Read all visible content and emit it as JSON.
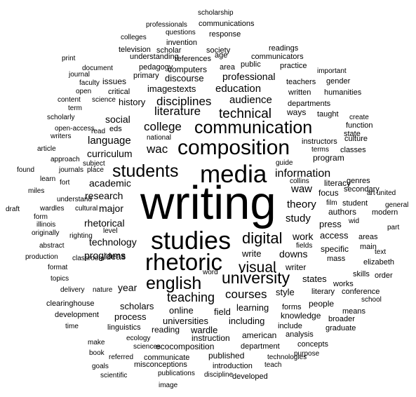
{
  "word_cloud": {
    "words": [
      {
        "text": "writing",
        "weight": 1.0
      },
      {
        "text": "studies",
        "weight": 0.55
      },
      {
        "text": "media",
        "weight": 0.55
      },
      {
        "text": "rhetoric",
        "weight": 0.52
      },
      {
        "text": "composition",
        "weight": 0.48
      },
      {
        "text": "english",
        "weight": 0.42
      },
      {
        "text": "students",
        "weight": 0.42
      },
      {
        "text": "communication",
        "weight": 0.38
      },
      {
        "text": "digital",
        "weight": 0.35
      },
      {
        "text": "university",
        "weight": 0.35
      },
      {
        "text": "technical",
        "weight": 0.3
      },
      {
        "text": "visual",
        "weight": 0.3
      },
      {
        "text": "teaching",
        "weight": 0.26
      },
      {
        "text": "courses",
        "weight": 0.26
      },
      {
        "text": "college",
        "weight": 0.25
      },
      {
        "text": "wac",
        "weight": 0.25
      },
      {
        "text": "disciplines",
        "weight": 0.24
      },
      {
        "text": "literature",
        "weight": 0.24
      },
      {
        "text": "information",
        "weight": 0.22
      },
      {
        "text": "research",
        "weight": 0.22
      },
      {
        "text": "theory",
        "weight": 0.21
      },
      {
        "text": "study",
        "weight": 0.21
      },
      {
        "text": "technology",
        "weight": 0.21
      },
      {
        "text": "programs",
        "weight": 0.2
      },
      {
        "text": "audience",
        "weight": 0.2
      },
      {
        "text": "language",
        "weight": 0.2
      },
      {
        "text": "waw",
        "weight": 0.2
      },
      {
        "text": "education",
        "weight": 0.19
      },
      {
        "text": "curriculum",
        "weight": 0.19
      },
      {
        "text": "academic",
        "weight": 0.19
      },
      {
        "text": "rhetorical",
        "weight": 0.19
      },
      {
        "text": "universities",
        "weight": 0.19
      },
      {
        "text": "professional",
        "weight": 0.18
      },
      {
        "text": "imagestexts",
        "weight": 0.18
      },
      {
        "text": "online",
        "weight": 0.18
      },
      {
        "text": "work",
        "weight": 0.18
      },
      {
        "text": "downs",
        "weight": 0.18
      },
      {
        "text": "scholars",
        "weight": 0.17
      },
      {
        "text": "major",
        "weight": 0.17
      },
      {
        "text": "ideas",
        "weight": 0.17
      },
      {
        "text": "history",
        "weight": 0.16
      },
      {
        "text": "social",
        "weight": 0.16
      },
      {
        "text": "learning",
        "weight": 0.16
      },
      {
        "text": "process",
        "weight": 0.16
      },
      {
        "text": "wardle",
        "weight": 0.16
      },
      {
        "text": "field",
        "weight": 0.16
      },
      {
        "text": "including",
        "weight": 0.16
      },
      {
        "text": "style",
        "weight": 0.16
      },
      {
        "text": "year",
        "weight": 0.15
      },
      {
        "text": "write",
        "weight": 0.15
      },
      {
        "text": "writer",
        "weight": 0.15
      },
      {
        "text": "press",
        "weight": 0.15
      },
      {
        "text": "access",
        "weight": 0.14
      },
      {
        "text": "states",
        "weight": 0.14
      },
      {
        "text": "reading",
        "weight": 0.14
      },
      {
        "text": "american",
        "weight": 0.14
      },
      {
        "text": "specific",
        "weight": 0.13
      },
      {
        "text": "instruction",
        "weight": 0.13
      },
      {
        "text": "ecocomposition",
        "weight": 0.13
      },
      {
        "text": "knowledge",
        "weight": 0.13
      },
      {
        "text": "forms",
        "weight": 0.13
      },
      {
        "text": "people",
        "weight": 0.13
      },
      {
        "text": "literacy",
        "weight": 0.13
      },
      {
        "text": "program",
        "weight": 0.13
      },
      {
        "text": "focus",
        "weight": 0.13
      },
      {
        "text": "authors",
        "weight": 0.13
      },
      {
        "text": "ways",
        "weight": 0.13
      },
      {
        "text": "discourse",
        "weight": 0.13
      },
      {
        "text": "computers",
        "weight": 0.12
      },
      {
        "text": "department",
        "weight": 0.12
      },
      {
        "text": "published",
        "weight": 0.12
      },
      {
        "text": "communicate",
        "weight": 0.12
      },
      {
        "text": "conference",
        "weight": 0.12
      },
      {
        "text": "developed",
        "weight": 0.12
      },
      {
        "text": "introduction",
        "weight": 0.12
      },
      {
        "text": "misconceptions",
        "weight": 0.12
      },
      {
        "text": "linguistics",
        "weight": 0.12
      },
      {
        "text": "development",
        "weight": 0.12
      },
      {
        "text": "clearinghouse",
        "weight": 0.12
      },
      {
        "text": "graduate",
        "weight": 0.12
      },
      {
        "text": "means",
        "weight": 0.12
      },
      {
        "text": "broader",
        "weight": 0.12
      },
      {
        "text": "include",
        "weight": 0.12
      },
      {
        "text": "analysis",
        "weight": 0.12
      },
      {
        "text": "concepts",
        "weight": 0.12
      },
      {
        "text": "instructors",
        "weight": 0.12
      },
      {
        "text": "culture",
        "weight": 0.12
      },
      {
        "text": "classes",
        "weight": 0.12
      },
      {
        "text": "secondary",
        "weight": 0.12
      },
      {
        "text": "genres",
        "weight": 0.12
      },
      {
        "text": "student",
        "weight": 0.12
      },
      {
        "text": "modern",
        "weight": 0.12
      },
      {
        "text": "areas",
        "weight": 0.12
      },
      {
        "text": "main",
        "weight": 0.12
      },
      {
        "text": "elizabeth",
        "weight": 0.12
      },
      {
        "text": "mass",
        "weight": 0.12
      },
      {
        "text": "skills",
        "weight": 0.12
      },
      {
        "text": "order",
        "weight": 0.12
      },
      {
        "text": "literary",
        "weight": 0.12
      },
      {
        "text": "works",
        "weight": 0.12
      },
      {
        "text": "school",
        "weight": 0.1
      },
      {
        "text": "teachers",
        "weight": 0.12
      },
      {
        "text": "written",
        "weight": 0.12
      },
      {
        "text": "departments",
        "weight": 0.12
      },
      {
        "text": "humanities",
        "weight": 0.12
      },
      {
        "text": "taught",
        "weight": 0.12
      },
      {
        "text": "create",
        "weight": 0.1
      },
      {
        "text": "function",
        "weight": 0.11
      },
      {
        "text": "state",
        "weight": 0.11
      },
      {
        "text": "gender",
        "weight": 0.11
      },
      {
        "text": "important",
        "weight": 0.1
      },
      {
        "text": "practice",
        "weight": 0.11
      },
      {
        "text": "readings",
        "weight": 0.11
      },
      {
        "text": "communicators",
        "weight": 0.11
      },
      {
        "text": "public",
        "weight": 0.11
      },
      {
        "text": "area",
        "weight": 0.11
      },
      {
        "text": "age",
        "weight": 0.1
      },
      {
        "text": "society",
        "weight": 0.11
      },
      {
        "text": "response",
        "weight": 0.11
      },
      {
        "text": "communications",
        "weight": 0.11
      },
      {
        "text": "scholarship",
        "weight": 0.11
      },
      {
        "text": "professionals",
        "weight": 0.1
      },
      {
        "text": "questions",
        "weight": 0.1
      },
      {
        "text": "colleges",
        "weight": 0.1
      },
      {
        "text": "invention",
        "weight": 0.1
      },
      {
        "text": "television",
        "weight": 0.11
      },
      {
        "text": "scholar",
        "weight": 0.11
      },
      {
        "text": "references",
        "weight": 0.11
      },
      {
        "text": "print",
        "weight": 0.11
      },
      {
        "text": "understanding",
        "weight": 0.1
      },
      {
        "text": "pedagogy",
        "weight": 0.11
      },
      {
        "text": "document",
        "weight": 0.11
      },
      {
        "text": "journal",
        "weight": 0.1
      },
      {
        "text": "primary",
        "weight": 0.1
      },
      {
        "text": "issues",
        "weight": 0.11
      },
      {
        "text": "faculty",
        "weight": 0.12
      },
      {
        "text": "open",
        "weight": 0.1
      },
      {
        "text": "critical",
        "weight": 0.1
      },
      {
        "text": "content",
        "weight": 0.11
      },
      {
        "text": "science",
        "weight": 0.1
      },
      {
        "text": "term",
        "weight": 0.1
      },
      {
        "text": "scholarly",
        "weight": 0.1
      },
      {
        "text": "open-access",
        "weight": 0.1
      },
      {
        "text": "read",
        "weight": 0.1
      },
      {
        "text": "eds",
        "weight": 0.1
      },
      {
        "text": "writers",
        "weight": 0.11
      },
      {
        "text": "national",
        "weight": 0.1
      },
      {
        "text": "article",
        "weight": 0.1
      },
      {
        "text": "approach",
        "weight": 0.1
      },
      {
        "text": "subject",
        "weight": 0.1
      },
      {
        "text": "found",
        "weight": 0.1
      },
      {
        "text": "journals",
        "weight": 0.1
      },
      {
        "text": "place",
        "weight": 0.1
      },
      {
        "text": "learn",
        "weight": 0.1
      },
      {
        "text": "fort",
        "weight": 0.1
      },
      {
        "text": "miles",
        "weight": 0.1
      },
      {
        "text": "understand",
        "weight": 0.1
      },
      {
        "text": "draft",
        "weight": 0.1
      },
      {
        "text": "wardles",
        "weight": 0.1
      },
      {
        "text": "cultural",
        "weight": 0.1
      },
      {
        "text": "form",
        "weight": 0.1
      },
      {
        "text": "illinois",
        "weight": 0.1
      },
      {
        "text": "originally",
        "weight": 0.1
      },
      {
        "text": "righting",
        "weight": 0.1
      },
      {
        "text": "level",
        "weight": 0.1
      },
      {
        "text": "abstract",
        "weight": 0.1
      },
      {
        "text": "production",
        "weight": 0.1
      },
      {
        "text": "classroom",
        "weight": 0.1
      },
      {
        "text": "format",
        "weight": 0.1
      },
      {
        "text": "topics",
        "weight": 0.1
      },
      {
        "text": "delivery",
        "weight": 0.1
      },
      {
        "text": "nature",
        "weight": 0.1
      },
      {
        "text": "time",
        "weight": 0.1
      },
      {
        "text": "ecology",
        "weight": 0.1
      },
      {
        "text": "make",
        "weight": 0.1
      },
      {
        "text": "sciences",
        "weight": 0.1
      },
      {
        "text": "book",
        "weight": 0.1
      },
      {
        "text": "referred",
        "weight": 0.1
      },
      {
        "text": "goals",
        "weight": 0.1
      },
      {
        "text": "scientific",
        "weight": 0.1
      },
      {
        "text": "publications",
        "weight": 0.1
      },
      {
        "text": "discipline",
        "weight": 0.1
      },
      {
        "text": "image",
        "weight": 0.1
      },
      {
        "text": "technologies",
        "weight": 0.1
      },
      {
        "text": "teach",
        "weight": 0.1
      },
      {
        "text": "purpose",
        "weight": 0.1
      },
      {
        "text": "guide",
        "weight": 0.1
      },
      {
        "text": "collins",
        "weight": 0.1
      },
      {
        "text": "terms",
        "weight": 0.1
      },
      {
        "text": "film",
        "weight": 0.1
      },
      {
        "text": "art",
        "weight": 0.1
      },
      {
        "text": "united",
        "weight": 0.1
      },
      {
        "text": "general",
        "weight": 0.1
      },
      {
        "text": "wid",
        "weight": 0.1
      },
      {
        "text": "part",
        "weight": 0.1
      },
      {
        "text": "fields",
        "weight": 0.1
      },
      {
        "text": "text",
        "weight": 0.1
      },
      {
        "text": "word",
        "weight": 0.1
      }
    ]
  }
}
